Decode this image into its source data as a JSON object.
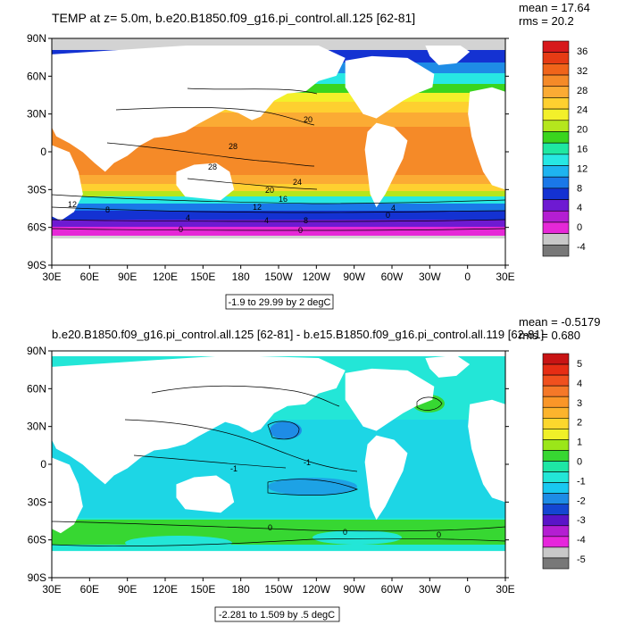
{
  "panels": [
    {
      "title": "TEMP at z=   5.0m, b.e20.B1850.f09_g16.pi_control.all.125 [62-81]",
      "stats": {
        "mean": "mean = 17.64",
        "rms": "rms = 20.2"
      },
      "range_label": "-1.9 to 29.99 by 2 degC",
      "colorbar": {
        "labels": [
          "36",
          "32",
          "28",
          "24",
          "20",
          "16",
          "12",
          "8",
          "4",
          "0",
          "-4"
        ],
        "colors": [
          "#d7191c",
          "#e63b14",
          "#f0641a",
          "#f58a28",
          "#fbab34",
          "#fed030",
          "#f3f02a",
          "#b5e61d",
          "#3ad51e",
          "#1fe8a2",
          "#27e8e3",
          "#1eb4f0",
          "#1a78e8",
          "#1432d2",
          "#6e1ad2",
          "#b41ed2",
          "#e628d7",
          "#c8c8c8",
          "#787878"
        ]
      },
      "contour_labels": [
        "20",
        "28",
        "28",
        "24",
        "20",
        "16",
        "12",
        "12",
        "8",
        "8",
        "4",
        "4",
        "0",
        "0",
        "4",
        "0"
      ]
    },
    {
      "title": "b.e20.B1850.f09_g16.pi_control.all.125 [62-81] - b.e15.B1850.f09_g16.pi_control.all.119 [62-81]",
      "stats": {
        "mean": "mean = -0.5179",
        "rms": "rms = 0.680"
      },
      "range_label": "-2.281 to 1.509 by .5 degC",
      "colorbar": {
        "labels": [
          "5",
          "4",
          "3",
          "2",
          "1",
          "0",
          "-1",
          "-2",
          "-3",
          "-4",
          "-5"
        ],
        "colors": [
          "#c81414",
          "#e62d14",
          "#f0501e",
          "#f57828",
          "#fa9628",
          "#fcb42d",
          "#fcd72d",
          "#f0f028",
          "#9be619",
          "#37d732",
          "#1ee6a5",
          "#23e6d7",
          "#19c8f0",
          "#1e8ce6",
          "#1446d2",
          "#5a14c8",
          "#b41ed2",
          "#e626dc",
          "#c8c8c8",
          "#787878"
        ]
      },
      "contour_labels": [
        "-1",
        "-1",
        "0",
        "0",
        "0"
      ]
    }
  ],
  "map": {
    "lat_labels": [
      "90N",
      "60N",
      "30N",
      "0",
      "30S",
      "60S",
      "90S"
    ],
    "lon_labels": [
      "30E",
      "60E",
      "90E",
      "120E",
      "150E",
      "180",
      "150W",
      "120W",
      "90W",
      "60W",
      "30W",
      "0",
      "30E"
    ]
  }
}
